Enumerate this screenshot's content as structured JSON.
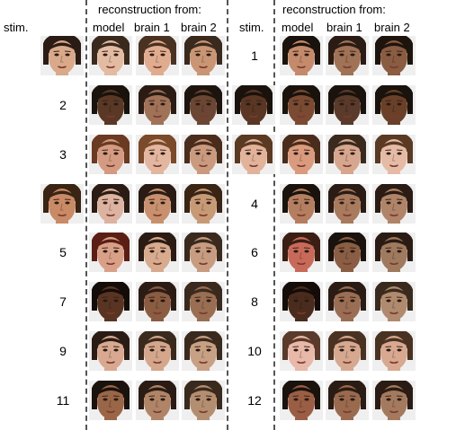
{
  "left_panel": {
    "stim_header": "stim.",
    "recon_header": "reconstruction from:",
    "col_headers": [
      "model",
      "brain 1",
      "brain 2"
    ],
    "rows": [
      {
        "label": "",
        "skin": [
          "#d9a98a",
          "#e3bba2",
          "#e0ac90",
          "#c99574"
        ],
        "hair": [
          "#2a1c14",
          "#3a2a1e",
          "#4a3222",
          "#3a2a1e"
        ]
      },
      {
        "label": "2",
        "skin": null,
        "hair": null,
        "recon_skin": [
          "#5a3826",
          "#a07258",
          "#6b4634"
        ],
        "recon_hair": [
          "#1a120c",
          "#2a1c14",
          "#1e140e"
        ]
      },
      {
        "label": "3",
        "skin": null,
        "hair": null,
        "recon_skin": [
          "#d49a82",
          "#e3b6a0",
          "#c99a7e"
        ],
        "recon_hair": [
          "#6a3a22",
          "#7a4a2a",
          "#4a2c1c"
        ]
      },
      {
        "label": "",
        "skin": [
          "#c98a66",
          "#dcb3a0",
          "#c8906e",
          "#c79a76"
        ],
        "hair": [
          "#3a2414",
          "#2a1c14",
          "#2a1c14",
          "#3a2414"
        ]
      },
      {
        "label": "5",
        "skin": null,
        "hair": null,
        "recon_skin": [
          "#d9a088",
          "#d8aa8e",
          "#c89c80"
        ],
        "recon_hair": [
          "#5a1e14",
          "#2a1c14",
          "#3a2a1e"
        ]
      },
      {
        "label": "7",
        "skin": null,
        "hair": null,
        "recon_skin": [
          "#5a3422",
          "#8a5c42",
          "#9a6e52"
        ],
        "recon_hair": [
          "#140c08",
          "#2a1c14",
          "#3a2a1e"
        ]
      },
      {
        "label": "9",
        "skin": null,
        "hair": null,
        "recon_skin": [
          "#d8a890",
          "#d4a68c",
          "#c8a084"
        ],
        "recon_hair": [
          "#2a1c14",
          "#3a2a1e",
          "#3a2a1e"
        ]
      },
      {
        "label": "11",
        "skin": null,
        "hair": null,
        "recon_skin": [
          "#9a6648",
          "#b08466",
          "#b48e70"
        ],
        "recon_hair": [
          "#1a120c",
          "#2a1c14",
          "#3a2a1e"
        ]
      }
    ]
  },
  "right_panel": {
    "stim_header": "stim.",
    "recon_header": "reconstruction from:",
    "col_headers": [
      "model",
      "brain 1",
      "brain 2"
    ],
    "rows": [
      {
        "label": "1",
        "skin": null,
        "hair": null,
        "recon_skin": [
          "#c48a6c",
          "#a07256",
          "#8a5c42"
        ],
        "recon_hair": [
          "#1a120c",
          "#2a1c14",
          "#1e140e"
        ]
      },
      {
        "label": "",
        "skin": [
          "#5a3624",
          "#7a4a32",
          "#5a3a2a",
          "#6a4028"
        ],
        "hair": [
          "#1a120c",
          "#1a120c",
          "#1a120c",
          "#1a120c"
        ]
      },
      {
        "label": "",
        "skin": [
          "#e2b29a",
          "#d99a7e",
          "#d6a68e",
          "#e6bba6"
        ],
        "hair": [
          "#5a3a22",
          "#4a2c1c",
          "#3a2a1e",
          "#5a3a22"
        ]
      },
      {
        "label": "4",
        "skin": null,
        "hair": null,
        "recon_skin": [
          "#b47e60",
          "#a87a5e",
          "#b08468"
        ],
        "recon_hair": [
          "#1a120c",
          "#2a1c14",
          "#2a1c14"
        ]
      },
      {
        "label": "6",
        "skin": null,
        "hair": null,
        "recon_skin": [
          "#c86a5a",
          "#8a5e44",
          "#a07a5e"
        ],
        "recon_hair": [
          "#3a1e14",
          "#1a120c",
          "#2a1c14"
        ]
      },
      {
        "label": "8",
        "skin": null,
        "hair": null,
        "recon_skin": [
          "#4a2c1e",
          "#9a6e54",
          "#b08a6e"
        ],
        "recon_hair": [
          "#140c08",
          "#2a1c14",
          "#3a2a1e"
        ]
      },
      {
        "label": "10",
        "skin": null,
        "hair": null,
        "recon_skin": [
          "#e8b8a8",
          "#d6a890",
          "#d8a890"
        ],
        "recon_hair": [
          "#5a3a2a",
          "#4a3222",
          "#4a3222"
        ]
      },
      {
        "label": "12",
        "skin": null,
        "hair": null,
        "recon_skin": [
          "#9a5e44",
          "#9a6a4e",
          "#a47a5e"
        ],
        "recon_hair": [
          "#1a120c",
          "#2a1c14",
          "#2a1c14"
        ]
      }
    ]
  },
  "colors": {
    "divider": "#555555",
    "background": "#ffffff",
    "face_bg": "#efefef"
  }
}
